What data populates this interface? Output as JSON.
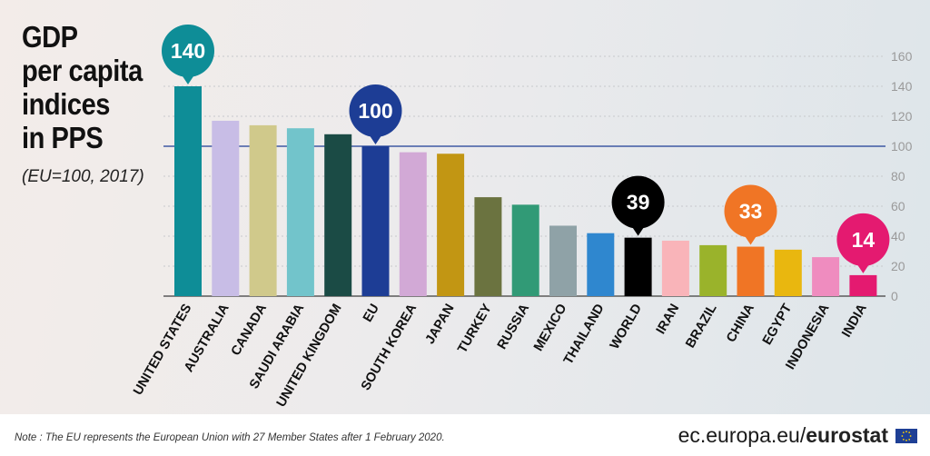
{
  "title_lines": [
    "GDP",
    "per capita",
    "indices",
    "in PPS"
  ],
  "subtitle": "(EU=100, 2017)",
  "footer": {
    "note": "Note : The EU represents the European Union with 27 Member States after 1 February 2020.",
    "source_prefix": "ec.europa.eu/",
    "source_brand": "eurostat"
  },
  "chart_data": {
    "type": "bar",
    "title": "GDP per capita indices in PPS",
    "subtitle": "(EU=100, 2017)",
    "categories": [
      "UNITED STATES",
      "AUSTRALIA",
      "CANADA",
      "SAUDI ARABIA",
      "UNITED KINGDOM",
      "EU",
      "SOUTH KOREA",
      "JAPAN",
      "TURKEY",
      "RUSSIA",
      "MEXICO",
      "THAILAND",
      "WORLD",
      "IRAN",
      "BRAZIL",
      "CHINA",
      "EGYPT",
      "INDONESIA",
      "INDIA"
    ],
    "values": [
      140,
      117,
      114,
      112,
      108,
      100,
      96,
      95,
      66,
      61,
      47,
      42,
      39,
      37,
      34,
      33,
      31,
      26,
      14
    ],
    "colors": [
      "#0e8d97",
      "#c8bde6",
      "#d0c98b",
      "#72c4cb",
      "#1b4b45",
      "#1d3d95",
      "#d2a9d6",
      "#c29613",
      "#6b7340",
      "#319a76",
      "#8fa2a7",
      "#2f87cf",
      "#000000",
      "#f9b4b9",
      "#9ab32b",
      "#f07525",
      "#e9b70f",
      "#ef8cbf",
      "#e41a70"
    ],
    "reference_line": 100,
    "ylim": [
      0,
      160
    ],
    "yticks": [
      0,
      20,
      40,
      60,
      80,
      100,
      120,
      140,
      160
    ],
    "callouts": [
      {
        "category": "UNITED STATES",
        "label": "140",
        "color": "#0e8d97"
      },
      {
        "category": "EU",
        "label": "100",
        "color": "#1d3d95"
      },
      {
        "category": "WORLD",
        "label": "39",
        "color": "#000000"
      },
      {
        "category": "CHINA",
        "label": "33",
        "color": "#f07525"
      },
      {
        "category": "INDIA",
        "label": "14",
        "color": "#e41a70"
      }
    ],
    "grid": true,
    "axis_position": "right"
  }
}
